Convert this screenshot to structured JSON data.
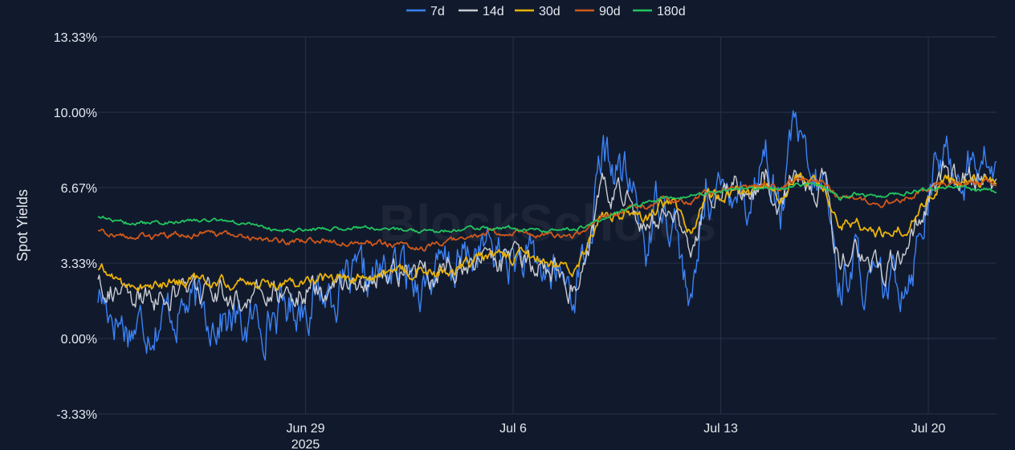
{
  "chart_data": {
    "type": "line",
    "title": "",
    "xlabel": "",
    "ylabel": "Spot Yields",
    "watermark": "BlockScholes",
    "y_ticks": [
      "13.33%",
      "10.00%",
      "6.67%",
      "3.33%",
      "0.00%",
      "-3.33%"
    ],
    "y_tick_values": [
      13.33,
      10.0,
      6.67,
      3.33,
      0.0,
      -3.33
    ],
    "ylim": [
      -3.33,
      13.33
    ],
    "x_ticks": [
      {
        "label": "Jun 29",
        "sublabel": "2025",
        "day": 29
      },
      {
        "label": "Jul 6",
        "sublabel": "",
        "day": 36
      },
      {
        "label": "Jul 13",
        "sublabel": "",
        "day": 43
      },
      {
        "label": "Jul 20",
        "sublabel": "",
        "day": 50
      }
    ],
    "xlim_day": [
      22.0,
      52.3
    ],
    "grid": true,
    "legend_position": "top-center",
    "x": [
      22.0,
      23.0,
      24.0,
      25.0,
      26.0,
      27.0,
      28.0,
      29.0,
      30.0,
      31.0,
      32.0,
      33.0,
      34.0,
      35.0,
      36.0,
      37.0,
      37.5,
      38.0,
      38.5,
      39.0,
      39.5,
      40.0,
      40.5,
      41.0,
      41.5,
      42.0,
      42.5,
      43.0,
      43.5,
      44.0,
      44.5,
      45.0,
      45.5,
      46.0,
      46.5,
      47.0,
      47.5,
      48.0,
      48.5,
      49.0,
      49.5,
      50.0,
      50.5,
      51.0,
      51.5,
      52.0,
      52.3
    ],
    "series": [
      {
        "name": "7d",
        "color": "#3b82f6",
        "noise": 1.25,
        "values": [
          2.0,
          0.5,
          0.9,
          1.5,
          1.0,
          0.5,
          1.2,
          1.7,
          2.2,
          2.4,
          3.1,
          2.6,
          3.2,
          4.0,
          3.4,
          3.0,
          2.8,
          2.2,
          4.0,
          8.0,
          7.5,
          6.6,
          4.0,
          6.6,
          5.0,
          0.8,
          7.0,
          6.0,
          7.2,
          6.0,
          8.5,
          5.2,
          9.5,
          6.6,
          6.8,
          2.3,
          3.6,
          2.2,
          2.0,
          2.5,
          3.6,
          6.7,
          8.0,
          7.5,
          7.6,
          7.8,
          7.1
        ]
      },
      {
        "name": "14d",
        "color": "#c9ccd2",
        "noise": 0.7,
        "values": [
          2.8,
          1.6,
          1.8,
          2.2,
          1.9,
          1.7,
          2.0,
          2.2,
          2.5,
          2.6,
          3.0,
          2.8,
          3.1,
          3.6,
          3.2,
          3.3,
          3.1,
          2.4,
          3.8,
          6.5,
          6.2,
          6.0,
          4.6,
          6.0,
          5.5,
          2.8,
          6.5,
          6.4,
          6.8,
          6.2,
          7.2,
          5.9,
          8.0,
          6.8,
          6.9,
          3.2,
          4.2,
          3.5,
          2.8,
          3.8,
          4.6,
          6.5,
          7.2,
          6.8,
          7.0,
          7.0,
          6.8
        ]
      },
      {
        "name": "30d",
        "color": "#eab308",
        "noise": 0.3,
        "values": [
          3.1,
          2.4,
          2.3,
          2.6,
          2.5,
          2.4,
          2.5,
          2.6,
          2.7,
          2.7,
          2.9,
          2.9,
          3.0,
          3.6,
          3.6,
          3.5,
          3.3,
          2.9,
          4.0,
          5.4,
          5.6,
          5.6,
          5.3,
          6.0,
          6.0,
          4.6,
          6.3,
          6.3,
          6.6,
          6.4,
          6.8,
          6.1,
          7.3,
          6.9,
          6.8,
          5.0,
          5.2,
          4.9,
          4.6,
          4.8,
          5.2,
          6.4,
          7.0,
          6.8,
          6.9,
          6.9,
          6.7
        ]
      },
      {
        "name": "90d",
        "color": "#d2581a",
        "noise": 0.15,
        "values": [
          4.8,
          4.5,
          4.5,
          4.6,
          4.6,
          4.5,
          4.3,
          4.3,
          4.3,
          4.3,
          4.1,
          4.0,
          4.3,
          4.7,
          4.7,
          4.6,
          4.6,
          4.5,
          4.8,
          5.3,
          5.6,
          5.8,
          5.8,
          6.2,
          6.1,
          6.0,
          6.4,
          6.5,
          6.7,
          6.6,
          6.8,
          6.6,
          7.0,
          7.0,
          6.9,
          6.1,
          6.2,
          6.1,
          6.0,
          6.1,
          6.3,
          6.7,
          6.9,
          6.8,
          6.8,
          6.9,
          6.8
        ]
      },
      {
        "name": "180d",
        "color": "#22c55e",
        "noise": 0.1,
        "values": [
          5.4,
          5.1,
          5.1,
          5.2,
          5.2,
          5.1,
          4.8,
          4.8,
          4.9,
          4.9,
          4.8,
          4.7,
          4.8,
          4.9,
          4.9,
          4.8,
          4.8,
          4.8,
          5.0,
          5.3,
          5.6,
          5.8,
          6.0,
          6.2,
          6.2,
          6.3,
          6.4,
          6.5,
          6.6,
          6.6,
          6.7,
          6.6,
          6.8,
          6.8,
          6.7,
          6.2,
          6.4,
          6.3,
          6.3,
          6.4,
          6.5,
          6.6,
          6.7,
          6.7,
          6.6,
          6.6,
          6.5
        ]
      }
    ]
  }
}
